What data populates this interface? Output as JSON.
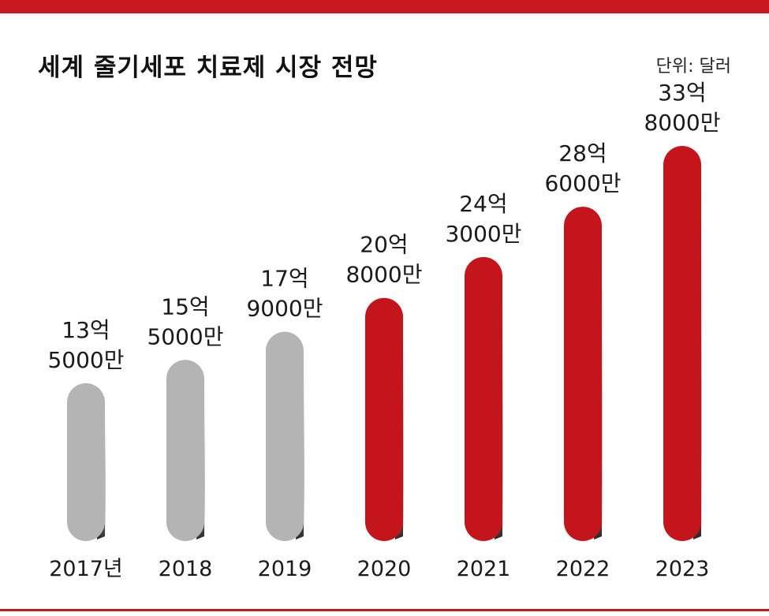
{
  "chart_data": {
    "type": "bar",
    "title": "세계 줄기세포 치료제 시장 전망",
    "unit_note": "단위: 달러",
    "categories": [
      "2017년",
      "2018",
      "2019",
      "2020",
      "2021",
      "2022",
      "2023"
    ],
    "values": [
      1350000000,
      1550000000,
      1790000000,
      2080000000,
      2430000000,
      2860000000,
      3380000000
    ],
    "value_labels": [
      [
        "13억",
        "5000만"
      ],
      [
        "15억",
        "5000만"
      ],
      [
        "17억",
        "9000만"
      ],
      [
        "20억",
        "8000만"
      ],
      [
        "24억",
        "3000만"
      ],
      [
        "28억",
        "6000만"
      ],
      [
        "33억",
        "8000만"
      ]
    ],
    "ylim": [
      0,
      3380000000
    ],
    "colors": {
      "historical": "#b4b4b4",
      "forecast": "#c4151c",
      "accent": "#c8191f"
    },
    "forecast_start_index": 3,
    "grid": false,
    "legend": "none"
  }
}
